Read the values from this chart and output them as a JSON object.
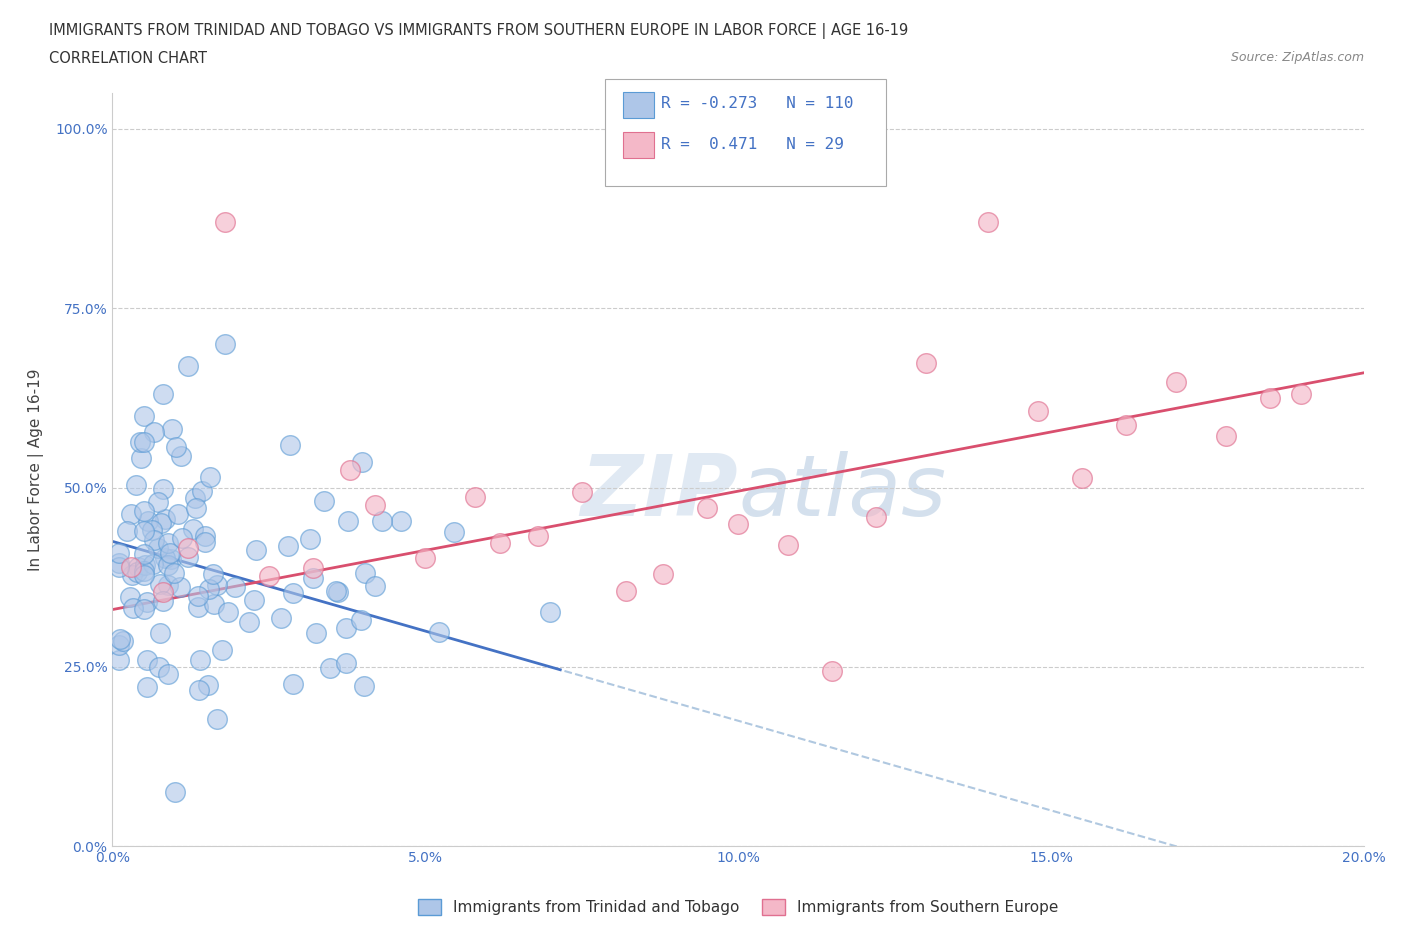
{
  "title_line1": "IMMIGRANTS FROM TRINIDAD AND TOBAGO VS IMMIGRANTS FROM SOUTHERN EUROPE IN LABOR FORCE | AGE 16-19",
  "title_line2": "CORRELATION CHART",
  "source_text": "Source: ZipAtlas.com",
  "xlabel": "Immigrants from Trinidad and Tobago",
  "xlabel2": "Immigrants from Southern Europe",
  "ylabel": "In Labor Force | Age 16-19",
  "series1_color": "#aec6e8",
  "series1_edge": "#5b9bd5",
  "series2_color": "#f4b8c8",
  "series2_edge": "#e07090",
  "trendline1_color": "#4472c4",
  "trendline2_color": "#d94f6e",
  "dashed_color": "#b0c8e0",
  "R1": -0.273,
  "N1": 110,
  "R2": 0.471,
  "N2": 29,
  "xmin": 0.0,
  "xmax": 0.2,
  "ymin": 0.0,
  "ymax": 1.05,
  "yticks": [
    0.0,
    0.25,
    0.5,
    0.75,
    1.0
  ],
  "ytick_labels": [
    "0.0%",
    "25.0%",
    "50.0%",
    "75.0%",
    "100.0%"
  ],
  "xticks": [
    0.0,
    0.05,
    0.1,
    0.15,
    0.2
  ],
  "xtick_labels": [
    "0.0%",
    "5.0%",
    "10.0%",
    "15.0%",
    "20.0%"
  ],
  "watermark": "ZIPatlas",
  "background_color": "#ffffff",
  "grid_color": "#cccccc"
}
